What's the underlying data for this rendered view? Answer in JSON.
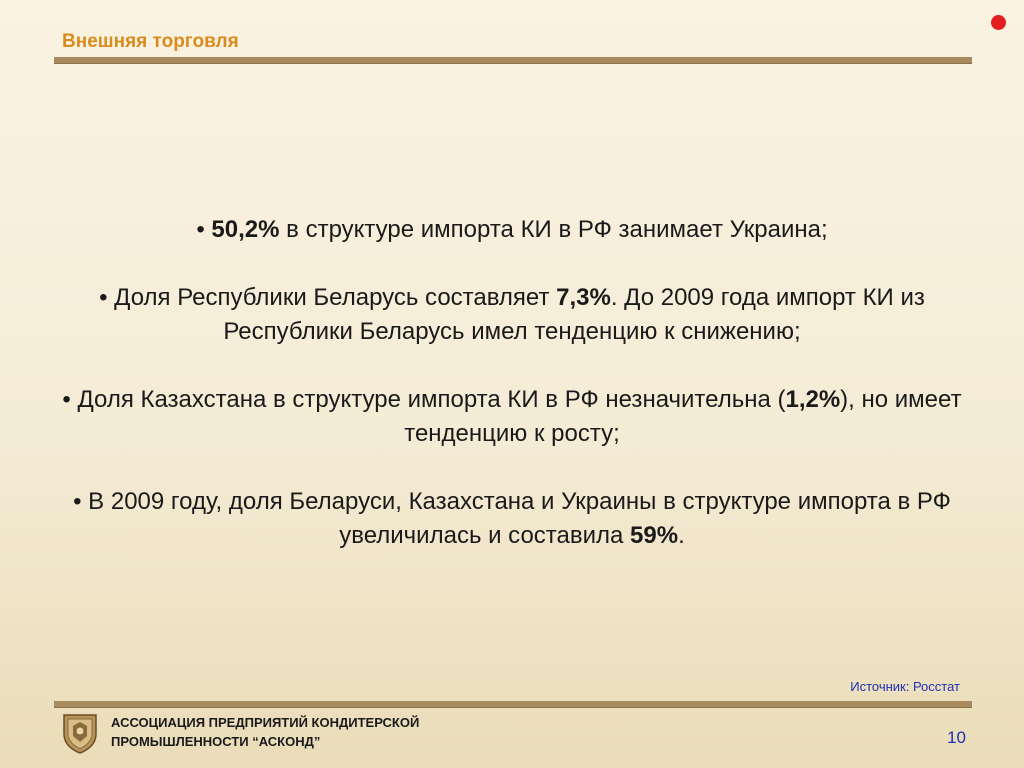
{
  "header": {
    "title": "Внешняя торговля"
  },
  "bullets": [
    {
      "prefix": "• ",
      "bold": "50,2%",
      "suffix": " в структуре импорта КИ в РФ занимает Украина;"
    },
    {
      "prefix": "• Доля Республики Беларусь составляет ",
      "bold": "7,3%",
      "suffix": ". До 2009 года импорт КИ из Республики Беларусь имел тенденцию к снижению;"
    },
    {
      "prefix": "• Доля Казахстана в структуре импорта КИ в РФ незначительна (",
      "bold": "1,2%",
      "suffix": "), но имеет тенденцию к росту;"
    },
    {
      "prefix": "• В 2009 году, доля Беларуси, Казахстана и Украины в структуре импорта в РФ увеличилась и составила ",
      "bold": "59%",
      "suffix": "."
    }
  ],
  "source": "Источник: Росстат",
  "footer": {
    "org_line1": "АССОЦИАЦИЯ ПРЕДПРИЯТИЙ  КОНДИТЕРСКОЙ",
    "org_line2": "ПРОМЫШЛЕННОСТИ “АСКОНД”",
    "page_number": "10"
  },
  "colors": {
    "title": "#d98c1d",
    "rule": "#a98a5e",
    "link_blue": "#1f2fb3",
    "record_dot": "#e41e1e"
  }
}
